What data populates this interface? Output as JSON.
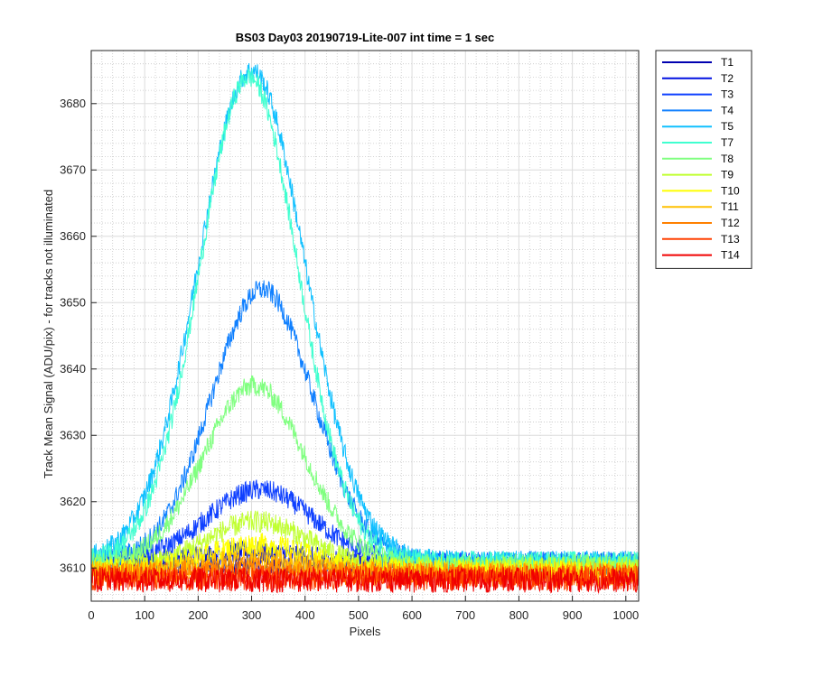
{
  "chart_data": {
    "type": "line",
    "title": "BS03 Day03 20190719-Lite-007 int time = 1 sec",
    "xlabel": "Pixels",
    "ylabel": "Track Mean Signal (ADU/pix) - for tracks not illuminated",
    "xlim": [
      0,
      1024
    ],
    "ylim": [
      3605,
      3688
    ],
    "xticks": [
      0,
      100,
      200,
      300,
      400,
      500,
      600,
      700,
      800,
      900,
      1000
    ],
    "yticks": [
      3610,
      3620,
      3630,
      3640,
      3650,
      3660,
      3670,
      3680
    ],
    "grid": "major and minor",
    "legend_position": "outside-top-right",
    "series": [
      {
        "name": "T1",
        "color": "#0000b0",
        "baseline": 3610.5,
        "peak": 0,
        "center": 300,
        "sigma": 110,
        "noise": 1.6
      },
      {
        "name": "T2",
        "color": "#0010e0",
        "baseline": 3610.5,
        "peak": 2,
        "center": 300,
        "sigma": 110,
        "noise": 1.6
      },
      {
        "name": "T3",
        "color": "#0f40ff",
        "baseline": 3610.8,
        "peak": 11,
        "center": 315,
        "sigma": 100,
        "noise": 1.6
      },
      {
        "name": "T4",
        "color": "#1080ff",
        "baseline": 3611.0,
        "peak": 41,
        "center": 320,
        "sigma": 95,
        "noise": 1.6
      },
      {
        "name": "T5",
        "color": "#10c0ff",
        "baseline": 3611.0,
        "peak": 74,
        "center": 300,
        "sigma": 100,
        "noise": 1.6
      },
      {
        "name": "T7",
        "color": "#40ffd0",
        "baseline": 3611.0,
        "peak": 73,
        "center": 295,
        "sigma": 92,
        "noise": 1.6
      },
      {
        "name": "T8",
        "color": "#80ff80",
        "baseline": 3610.5,
        "peak": 27,
        "center": 305,
        "sigma": 95,
        "noise": 1.6
      },
      {
        "name": "T9",
        "color": "#c0ff30",
        "baseline": 3610.0,
        "peak": 7,
        "center": 310,
        "sigma": 95,
        "noise": 1.7
      },
      {
        "name": "T10",
        "color": "#ffff00",
        "baseline": 3609.6,
        "peak": 4,
        "center": 310,
        "sigma": 95,
        "noise": 1.7
      },
      {
        "name": "T11",
        "color": "#ffc000",
        "baseline": 3609.3,
        "peak": 2,
        "center": 310,
        "sigma": 95,
        "noise": 1.8
      },
      {
        "name": "T12",
        "color": "#ff8000",
        "baseline": 3609.0,
        "peak": 1,
        "center": 310,
        "sigma": 95,
        "noise": 1.8
      },
      {
        "name": "T13",
        "color": "#ff4000",
        "baseline": 3608.5,
        "peak": 0,
        "center": 310,
        "sigma": 95,
        "noise": 1.9
      },
      {
        "name": "T14",
        "color": "#f00000",
        "baseline": 3608.2,
        "peak": 0,
        "center": 310,
        "sigma": 95,
        "noise": 1.9
      }
    ]
  }
}
